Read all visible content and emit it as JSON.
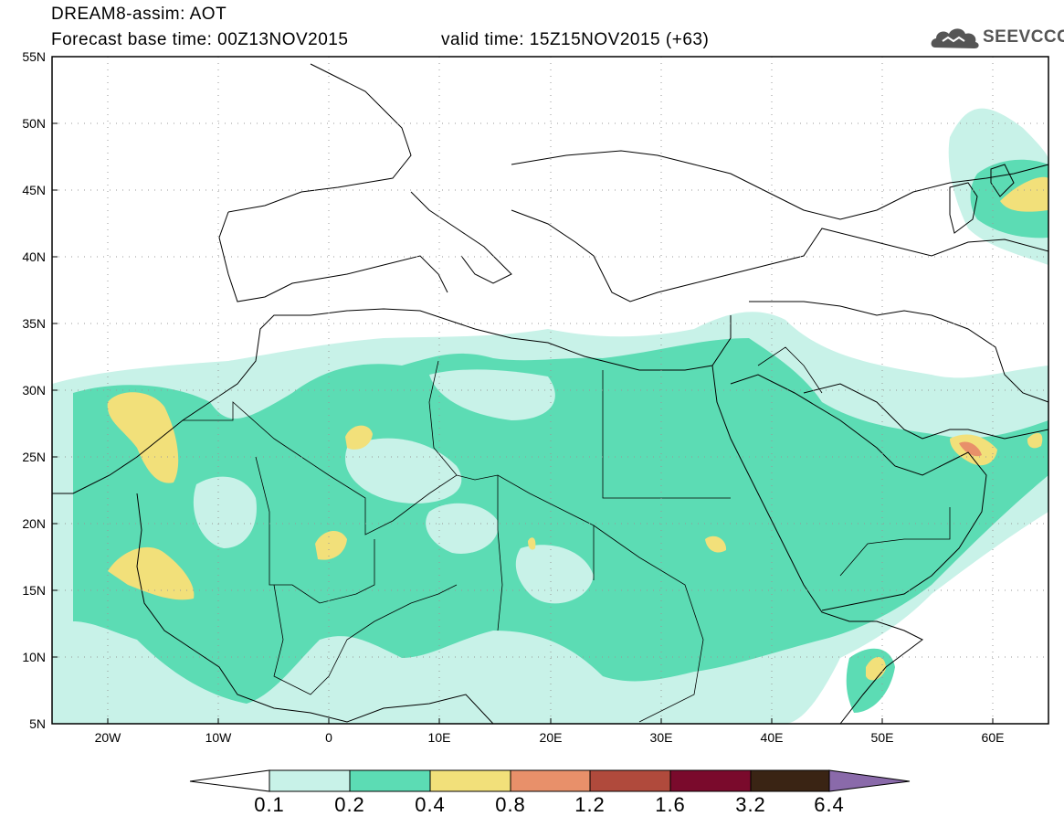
{
  "header": {
    "title_line1": "DREAM8-assim: AOT",
    "title_line2": "Forecast base time: 00Z13NOV2015",
    "valid_time": "valid time: 15Z15NOV2015 (+63)",
    "logo_text": "SEEVCCC",
    "logo_icon": "cloud-logo-icon"
  },
  "map": {
    "lon_range": [
      -25,
      65
    ],
    "lat_range": [
      5,
      55
    ],
    "lon_labels": [
      "20W",
      "10W",
      "0",
      "10E",
      "20E",
      "30E",
      "40E",
      "50E",
      "60E"
    ],
    "lat_labels": [
      "55N",
      "50N",
      "45N",
      "40N",
      "35N",
      "30N",
      "25N",
      "20N",
      "15N",
      "10N",
      "5N"
    ],
    "grid": "dotted"
  },
  "colorbar": {
    "labels": [
      "0.1",
      "0.2",
      "0.4",
      "0.8",
      "1.2",
      "1.6",
      "3.2",
      "6.4"
    ],
    "colors": [
      "#c8f2e8",
      "#5cdcb4",
      "#f2e07a",
      "#e8906a",
      "#b04a3c",
      "#7a0a2c",
      "#3a2414",
      "#8a6aaa"
    ],
    "below_color": "#ffffff"
  }
}
